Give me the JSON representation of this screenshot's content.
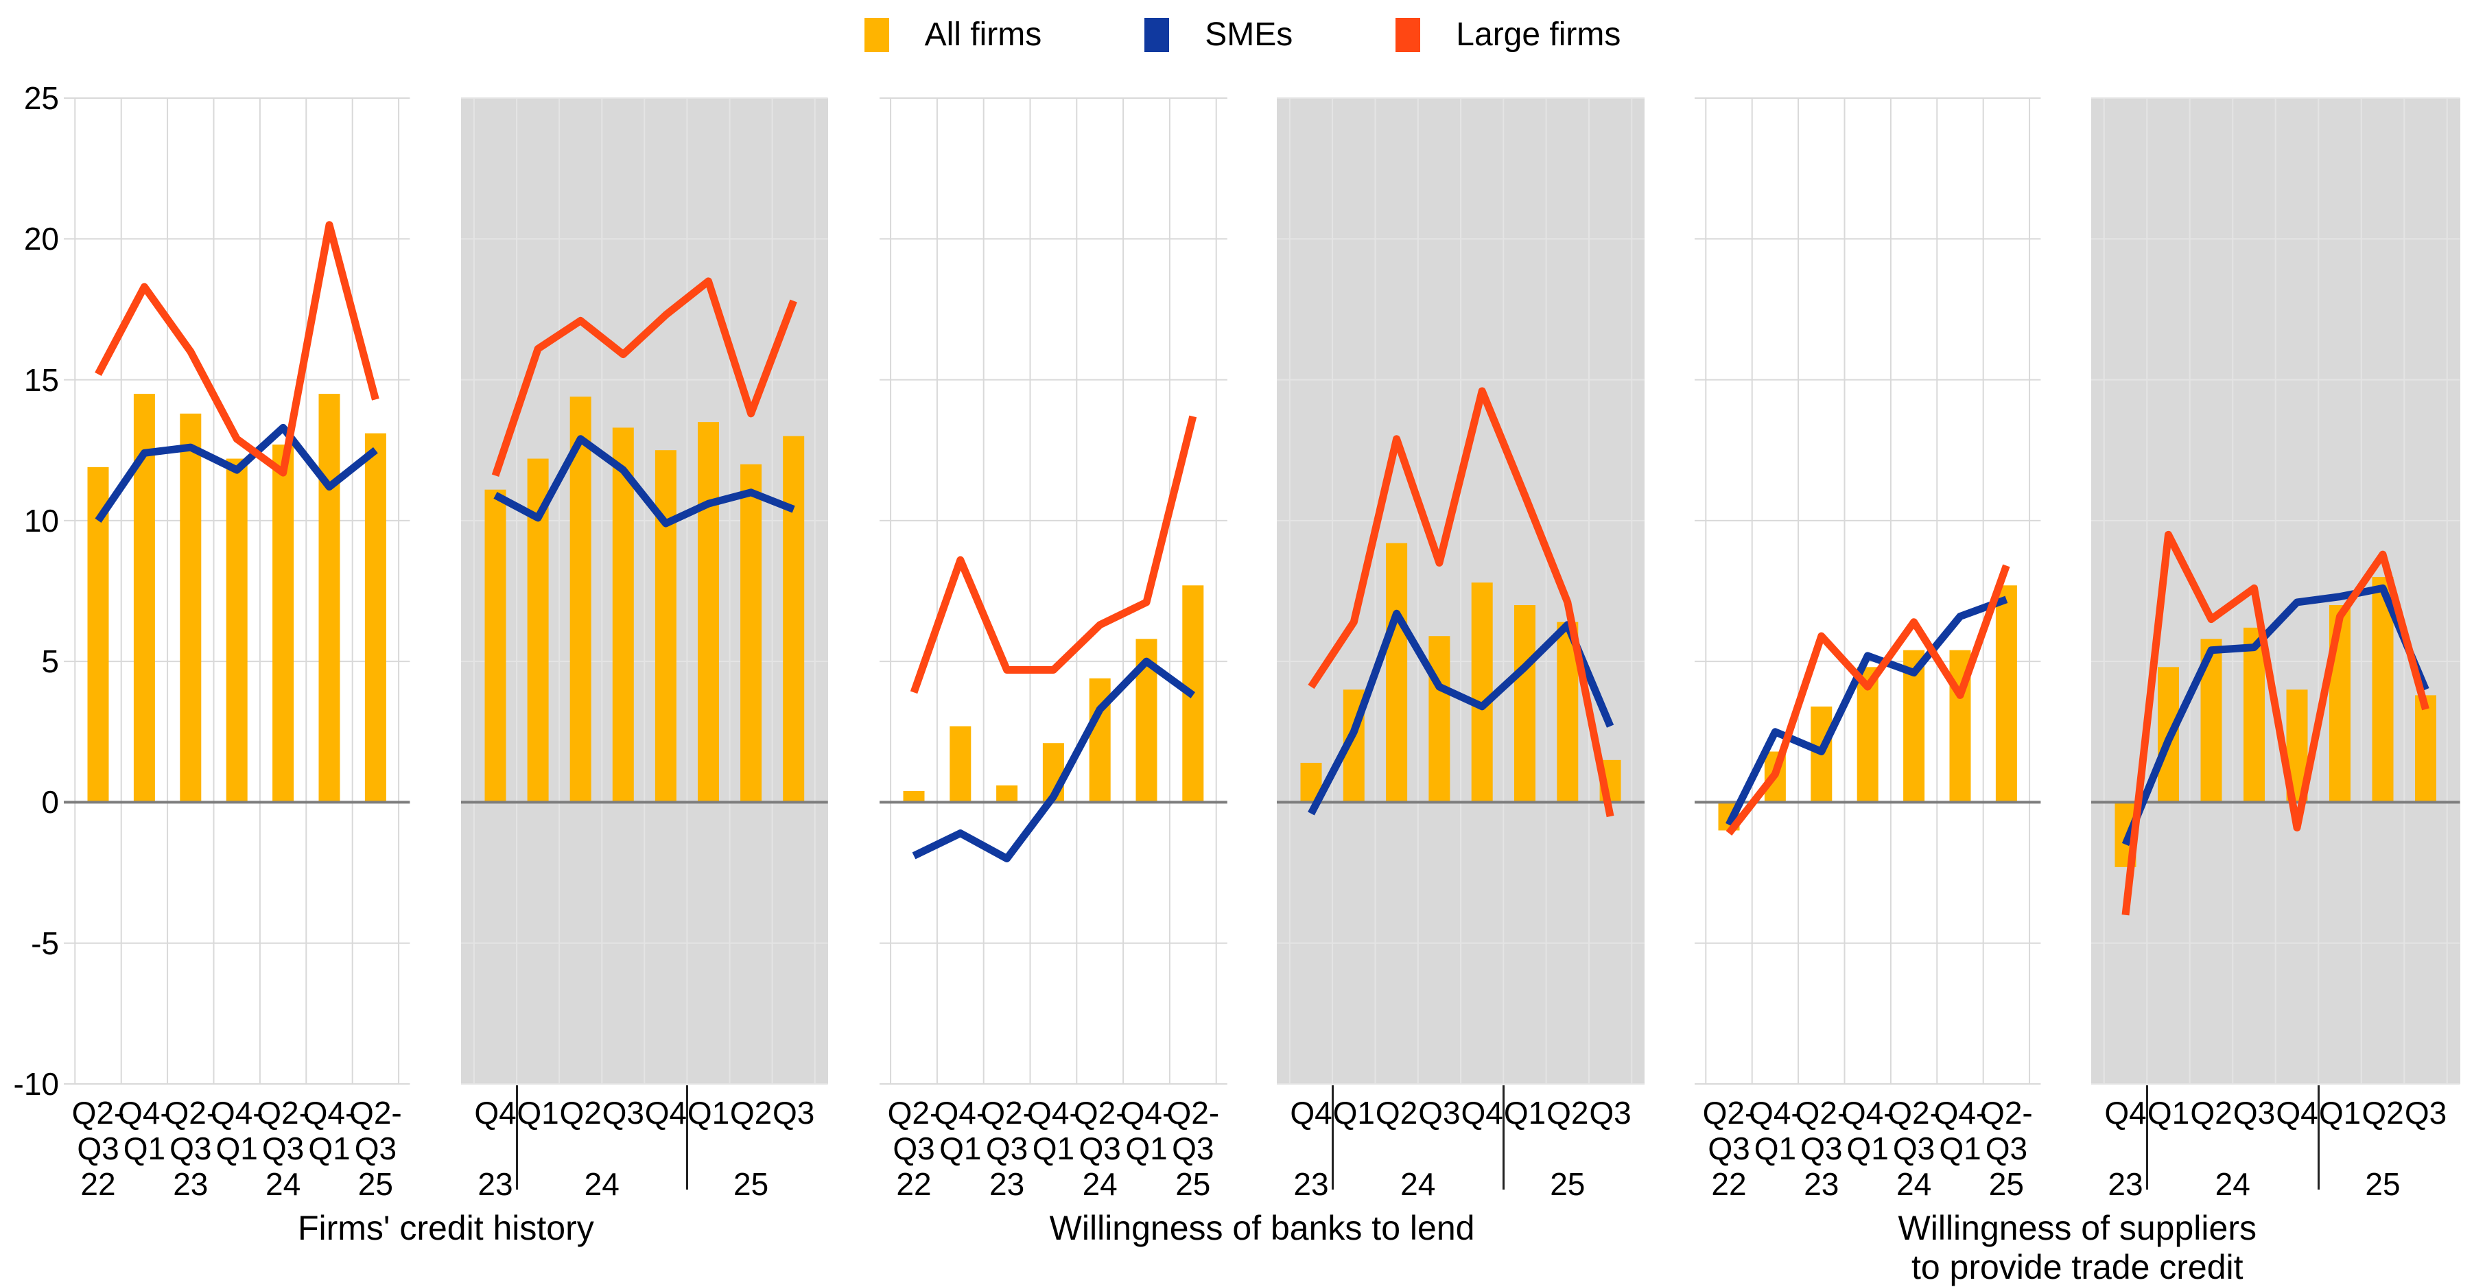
{
  "legend": {
    "items": [
      {
        "label": "All firms",
        "color": "#FFB400"
      },
      {
        "label": "SMEs",
        "color": "#10399F"
      },
      {
        "label": "Large firms",
        "color": "#FF4713"
      }
    ]
  },
  "y_axis": {
    "ticks": [
      25,
      20,
      15,
      10,
      5,
      0,
      -5,
      -10
    ]
  },
  "group_titles": [
    "Firms' credit history",
    "Willingness of banks to lend",
    "Willingness of suppliers\nto provide trade credit"
  ],
  "colors": {
    "all_firms": "#FFB400",
    "smes": "#10399F",
    "large_firms": "#FF4713",
    "shaded_panel": "#D9D9D9",
    "grid_on_white": "#D9D9D9",
    "grid_on_shaded": "#E4E4E4",
    "zero_line": "#7D7D7D",
    "text": "#000000"
  },
  "chart_data": [
    {
      "type": "bar",
      "group": "Firms' credit history",
      "frequency": "semiannual",
      "shaded": false,
      "ylim": [
        -10,
        25
      ],
      "x_labels": [
        [
          "Q2-",
          "Q3",
          "22"
        ],
        [
          "Q4-",
          "Q1"
        ],
        [
          "Q2-",
          "Q3",
          "23"
        ],
        [
          "Q4-",
          "Q1"
        ],
        [
          "Q2-",
          "Q3",
          "24"
        ],
        [
          "Q4-",
          "Q1"
        ],
        [
          "Q2-",
          "Q3",
          "25"
        ]
      ],
      "series": [
        {
          "name": "All firms",
          "type": "bar",
          "values": [
            11.9,
            14.5,
            13.8,
            12.2,
            12.7,
            14.5,
            13.1
          ]
        },
        {
          "name": "SMEs",
          "type": "line",
          "values": [
            10.0,
            12.4,
            12.6,
            11.8,
            13.3,
            11.2,
            12.5
          ]
        },
        {
          "name": "Large firms",
          "type": "line",
          "values": [
            15.2,
            18.3,
            16.0,
            12.9,
            11.7,
            20.5,
            14.3
          ]
        }
      ]
    },
    {
      "type": "bar",
      "group": "Firms' credit history",
      "frequency": "quarterly",
      "shaded": true,
      "ylim": [
        -10,
        25
      ],
      "x_labels": [
        [
          "Q4"
        ],
        [
          "Q1"
        ],
        [
          "Q2"
        ],
        [
          "Q3"
        ],
        [
          "Q4"
        ],
        [
          "Q1"
        ],
        [
          "Q2"
        ],
        [
          "Q3"
        ]
      ],
      "years": [
        {
          "label": "23",
          "slot": 0
        },
        {
          "label": "24",
          "slot": 2.5
        },
        {
          "label": "25",
          "slot": 6
        }
      ],
      "separators_after": [
        0,
        4
      ],
      "series": [
        {
          "name": "All firms",
          "type": "bar",
          "values": [
            11.1,
            12.2,
            14.4,
            13.3,
            12.5,
            13.5,
            12.0,
            13.0
          ]
        },
        {
          "name": "SMEs",
          "type": "line",
          "values": [
            10.9,
            10.1,
            12.9,
            11.8,
            9.9,
            10.6,
            11.0,
            10.4
          ]
        },
        {
          "name": "Large firms",
          "type": "line",
          "values": [
            11.6,
            16.1,
            17.1,
            15.9,
            17.3,
            18.5,
            13.8,
            17.8
          ]
        }
      ]
    },
    {
      "type": "bar",
      "group": "Willingness of banks to lend",
      "frequency": "semiannual",
      "shaded": false,
      "ylim": [
        -10,
        25
      ],
      "x_labels": [
        [
          "Q2-",
          "Q3",
          "22"
        ],
        [
          "Q4-",
          "Q1"
        ],
        [
          "Q2-",
          "Q3",
          "23"
        ],
        [
          "Q4-",
          "Q1"
        ],
        [
          "Q2-",
          "Q3",
          "24"
        ],
        [
          "Q4-",
          "Q1"
        ],
        [
          "Q2-",
          "Q3",
          "25"
        ]
      ],
      "series": [
        {
          "name": "All firms",
          "type": "bar",
          "values": [
            0.4,
            2.7,
            0.6,
            2.1,
            4.4,
            5.8,
            7.7
          ]
        },
        {
          "name": "SMEs",
          "type": "line",
          "values": [
            -1.9,
            -1.1,
            -2.0,
            0.2,
            3.3,
            5.0,
            3.8
          ]
        },
        {
          "name": "Large firms",
          "type": "line",
          "values": [
            3.9,
            8.6,
            4.7,
            4.7,
            6.3,
            7.1,
            13.7
          ]
        }
      ]
    },
    {
      "type": "bar",
      "group": "Willingness of banks to lend",
      "frequency": "quarterly",
      "shaded": true,
      "ylim": [
        -10,
        25
      ],
      "x_labels": [
        [
          "Q4"
        ],
        [
          "Q1"
        ],
        [
          "Q2"
        ],
        [
          "Q3"
        ],
        [
          "Q4"
        ],
        [
          "Q1"
        ],
        [
          "Q2"
        ],
        [
          "Q3"
        ]
      ],
      "years": [
        {
          "label": "23",
          "slot": 0
        },
        {
          "label": "24",
          "slot": 2.5
        },
        {
          "label": "25",
          "slot": 6
        }
      ],
      "separators_after": [
        0,
        4
      ],
      "series": [
        {
          "name": "All firms",
          "type": "bar",
          "values": [
            1.4,
            4.0,
            9.2,
            5.9,
            7.8,
            7.0,
            6.4,
            1.5
          ]
        },
        {
          "name": "SMEs",
          "type": "line",
          "values": [
            -0.4,
            2.5,
            6.7,
            4.1,
            3.4,
            4.8,
            6.3,
            2.7
          ]
        },
        {
          "name": "Large firms",
          "type": "line",
          "values": [
            4.1,
            6.4,
            12.9,
            8.5,
            14.6,
            10.9,
            7.1,
            -0.5
          ]
        }
      ]
    },
    {
      "type": "bar",
      "group": "Willingness of suppliers to provide trade credit",
      "frequency": "semiannual",
      "shaded": false,
      "ylim": [
        -10,
        25
      ],
      "x_labels": [
        [
          "Q2-",
          "Q3",
          "22"
        ],
        [
          "Q4-",
          "Q1"
        ],
        [
          "Q2-",
          "Q3",
          "23"
        ],
        [
          "Q4-",
          "Q1"
        ],
        [
          "Q2-",
          "Q3",
          "24"
        ],
        [
          "Q4-",
          "Q1"
        ],
        [
          "Q2-",
          "Q3",
          "25"
        ]
      ],
      "series": [
        {
          "name": "All firms",
          "type": "bar",
          "values": [
            -1.0,
            1.8,
            3.4,
            4.8,
            5.4,
            5.4,
            7.7
          ]
        },
        {
          "name": "SMEs",
          "type": "line",
          "values": [
            -0.8,
            2.5,
            1.8,
            5.2,
            4.6,
            6.6,
            7.2
          ]
        },
        {
          "name": "Large firms",
          "type": "line",
          "values": [
            -1.1,
            1.0,
            5.9,
            4.1,
            6.4,
            3.8,
            8.4
          ]
        }
      ]
    },
    {
      "type": "bar",
      "group": "Willingness of suppliers to provide trade credit",
      "frequency": "quarterly",
      "shaded": true,
      "ylim": [
        -10,
        25
      ],
      "x_labels": [
        [
          "Q4"
        ],
        [
          "Q1"
        ],
        [
          "Q2"
        ],
        [
          "Q3"
        ],
        [
          "Q4"
        ],
        [
          "Q1"
        ],
        [
          "Q2"
        ],
        [
          "Q3"
        ]
      ],
      "years": [
        {
          "label": "23",
          "slot": 0
        },
        {
          "label": "24",
          "slot": 2.5
        },
        {
          "label": "25",
          "slot": 6
        }
      ],
      "separators_after": [
        0,
        4
      ],
      "series": [
        {
          "name": "All firms",
          "type": "bar",
          "values": [
            -2.3,
            4.8,
            5.8,
            6.2,
            4.0,
            7.0,
            8.0,
            3.8
          ]
        },
        {
          "name": "SMEs",
          "type": "line",
          "values": [
            -1.5,
            2.2,
            5.4,
            5.5,
            7.1,
            7.3,
            7.6,
            4.0
          ]
        },
        {
          "name": "Large firms",
          "type": "line",
          "values": [
            -4.0,
            9.5,
            6.5,
            7.6,
            -0.9,
            6.6,
            8.8,
            3.3
          ]
        }
      ]
    }
  ]
}
